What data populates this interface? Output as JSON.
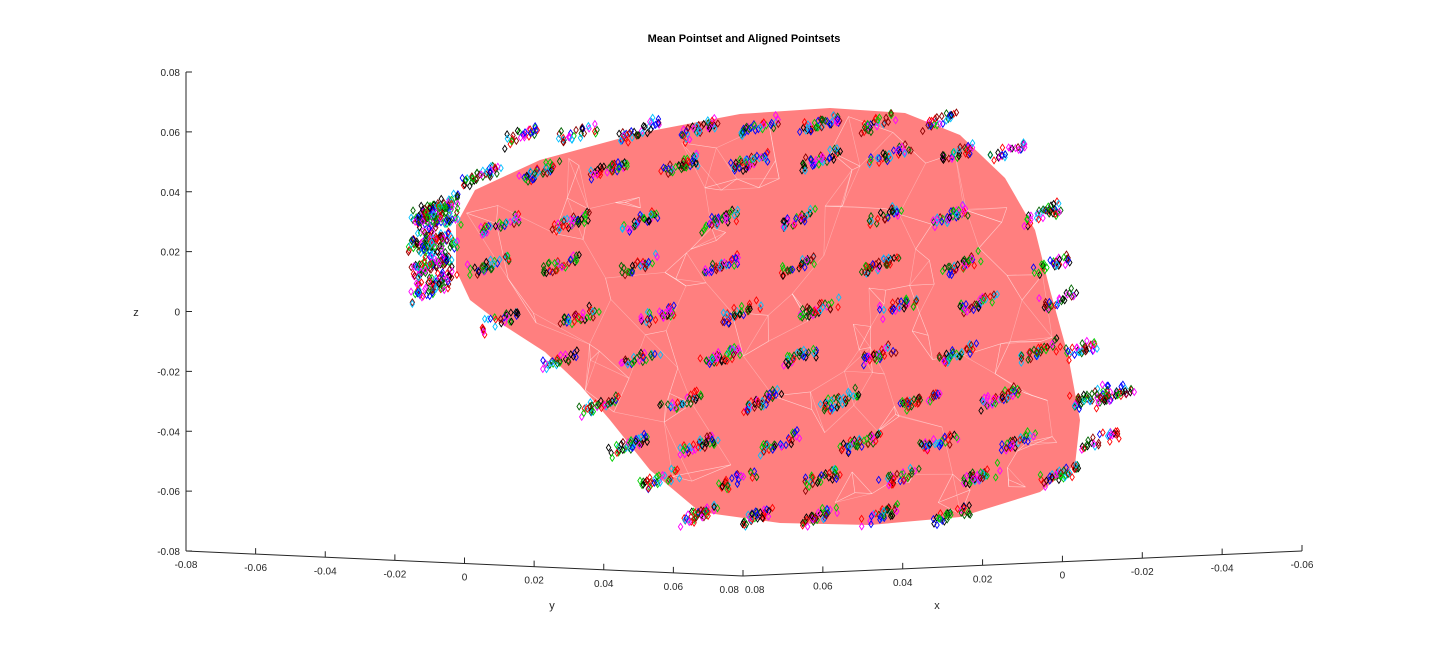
{
  "chart_data": {
    "type": "scatter",
    "projection": "3d",
    "title": "Mean Pointset and Aligned Pointsets",
    "xlabel": "x",
    "ylabel": "y",
    "zlabel": "z",
    "xlim": [
      -0.06,
      0.08
    ],
    "ylim": [
      -0.08,
      0.08
    ],
    "zlim": [
      -0.08,
      0.08
    ],
    "x_ticks": [
      "0.08",
      "0.06",
      "0.04",
      "0.02",
      "0",
      "-0.02",
      "-0.04",
      "-0.06"
    ],
    "y_ticks": [
      "-0.08",
      "-0.06",
      "-0.04",
      "-0.02",
      "0",
      "0.02",
      "0.04",
      "0.06",
      "0.08"
    ],
    "z_ticks": [
      "0.08",
      "0.06",
      "0.04",
      "0.02",
      "0",
      "-0.02",
      "-0.04",
      "-0.06",
      "-0.08"
    ],
    "surface": {
      "name": "mean pointset",
      "color": "#ff7f7f",
      "edge_color": "#ffffff"
    },
    "marker": "diamond",
    "series_colors": [
      "#000000",
      "#ff0000",
      "#00cc00",
      "#0000ff",
      "#ff00ff",
      "#00bfff",
      "#8b0000",
      "#006400"
    ],
    "grid": false,
    "legend": "none"
  }
}
